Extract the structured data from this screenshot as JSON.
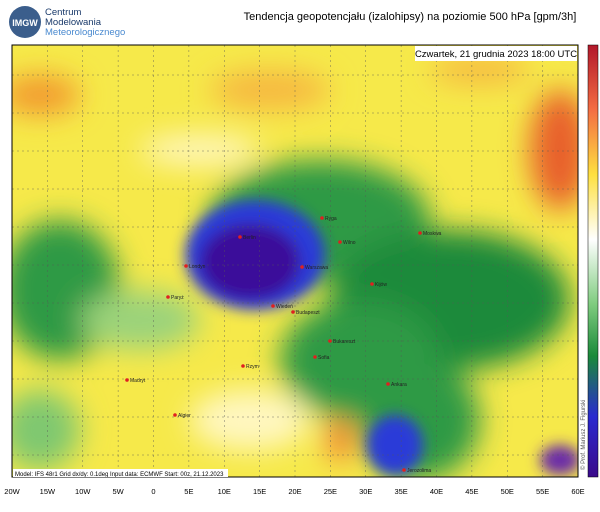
{
  "header": {
    "logo": "IMGW",
    "org_lines": [
      "Centrum",
      "Modelowania",
      "Meteorologicznego"
    ],
    "title": "Tendencja geopotencjału (izalohipsy) na poziomie 500 hPa  [gpm/3h]"
  },
  "map": {
    "date": "Czwartek, 21 grudnia 2023 18:00 UTC",
    "model_info": "Model: IFS 48r1  Grid dx/dy: 0.1deg  Input data: ECMWF  Start: 00z, 21.12.2023",
    "copyright": "© Prof. Mariusz J. Figurski",
    "cities": [
      "Ryga",
      "Wilno",
      "Moskwa",
      "Berlin",
      "Warszawa",
      "Londyn",
      "Kijów",
      "Paryż",
      "Wiedeń",
      "Budapeszt",
      "Bukareszt",
      "Sofia",
      "Rzym",
      "Madryt",
      "Algier",
      "Ankara",
      "Jerozolima"
    ],
    "lon_labels": [
      "20W",
      "15W",
      "10W",
      "5W",
      "0",
      "5E",
      "10E",
      "15E",
      "20E",
      "25E",
      "30E",
      "35E",
      "40E",
      "45E",
      "50E",
      "55E",
      "60E"
    ]
  }
}
